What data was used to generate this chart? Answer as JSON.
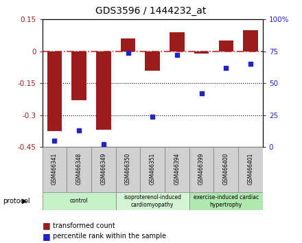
{
  "title": "GDS3596 / 1444232_at",
  "samples": [
    "GSM466341",
    "GSM466348",
    "GSM466349",
    "GSM466350",
    "GSM466351",
    "GSM466394",
    "GSM466399",
    "GSM466400",
    "GSM466401"
  ],
  "red_bars": [
    -0.375,
    -0.23,
    -0.37,
    0.06,
    -0.09,
    0.09,
    -0.01,
    0.05,
    0.1
  ],
  "blue_dots": [
    5,
    13,
    2,
    74,
    24,
    72,
    42,
    62,
    65
  ],
  "groups": [
    {
      "label": "control",
      "start": 0,
      "end": 3,
      "color": "#c8f0c8"
    },
    {
      "label": "isoproterenol-induced\ncardiomyopathy",
      "start": 3,
      "end": 6,
      "color": "#d4f5d4"
    },
    {
      "label": "exercise-induced cardiac\nhypertrophy",
      "start": 6,
      "end": 9,
      "color": "#b0e8b0"
    }
  ],
  "ylim_left": [
    -0.45,
    0.15
  ],
  "ylim_right": [
    0,
    100
  ],
  "yticks_left": [
    0.15,
    0,
    -0.15,
    -0.3,
    -0.45
  ],
  "yticks_right": [
    100,
    75,
    50,
    25,
    0
  ],
  "hlines": [
    -0.15,
    -0.3
  ],
  "bar_color": "#9b1c1c",
  "dot_color": "#2222cc",
  "dashed_line_color": "#cc2222",
  "sample_box_color": "#d0d0d0",
  "legend_items": [
    "transformed count",
    "percentile rank within the sample"
  ],
  "protocol_label": "protocol"
}
